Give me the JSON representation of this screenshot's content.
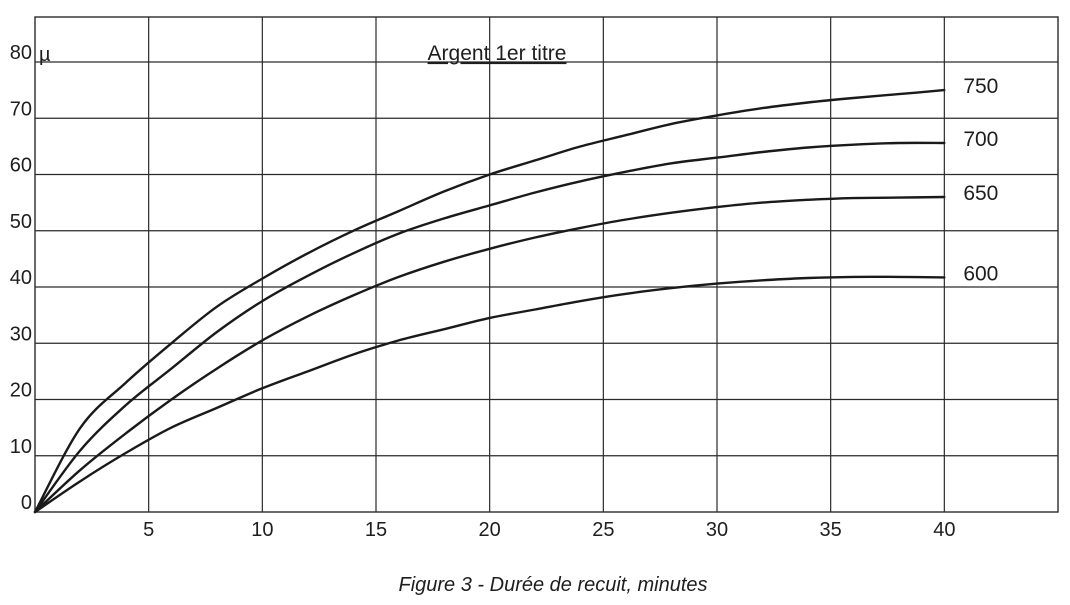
{
  "chart_data": {
    "type": "line",
    "title": "Argent 1er titre",
    "unit_label": "µ",
    "caption": "Figure 3 - Durée de recuit, minutes",
    "xlim": [
      0,
      45
    ],
    "ylim": [
      0,
      88
    ],
    "x_ticks": [
      "5",
      "10",
      "15",
      "20",
      "25",
      "30",
      "35",
      "40"
    ],
    "y_ticks": [
      "0",
      "10",
      "20",
      "30",
      "40",
      "50",
      "60",
      "70",
      "80"
    ],
    "grid": true,
    "series": [
      {
        "name": "750",
        "x": [
          0,
          2,
          4,
          6,
          8,
          10,
          12,
          14,
          16,
          18,
          20,
          22,
          24,
          26,
          28,
          30,
          32,
          34,
          36,
          38,
          40
        ],
        "y": [
          0,
          15,
          23,
          30,
          36.5,
          41.5,
          46,
          50,
          53.5,
          57,
          60,
          62.5,
          65,
          67,
          69,
          70.5,
          71.8,
          72.8,
          73.6,
          74.3,
          75
        ]
      },
      {
        "name": "700",
        "x": [
          0,
          2,
          4,
          6,
          8,
          10,
          12,
          14,
          16,
          18,
          20,
          22,
          24,
          26,
          28,
          30,
          32,
          34,
          36,
          38,
          40
        ],
        "y": [
          0,
          11,
          19,
          25.5,
          32,
          37.5,
          42,
          46,
          49.5,
          52.2,
          54.5,
          56.8,
          58.8,
          60.5,
          62,
          63,
          64,
          64.8,
          65.3,
          65.6,
          65.6
        ]
      },
      {
        "name": "650",
        "x": [
          0,
          2,
          4,
          6,
          8,
          10,
          12,
          14,
          16,
          18,
          20,
          22,
          24,
          26,
          28,
          30,
          32,
          34,
          36,
          38,
          40
        ],
        "y": [
          0,
          7.5,
          14,
          20,
          25.5,
          30.5,
          34.8,
          38.5,
          41.8,
          44.5,
          46.8,
          48.8,
          50.5,
          52,
          53.2,
          54.2,
          55,
          55.5,
          55.8,
          55.9,
          56
        ]
      },
      {
        "name": "600",
        "x": [
          0,
          2,
          4,
          6,
          8,
          10,
          12,
          14,
          16,
          18,
          20,
          22,
          24,
          26,
          28,
          30,
          32,
          34,
          36,
          38,
          40
        ],
        "y": [
          0,
          5.5,
          10.5,
          15,
          18.5,
          22,
          25,
          28,
          30.5,
          32.5,
          34.5,
          36,
          37.5,
          38.8,
          39.8,
          40.6,
          41.2,
          41.6,
          41.8,
          41.8,
          41.7
        ]
      }
    ]
  }
}
